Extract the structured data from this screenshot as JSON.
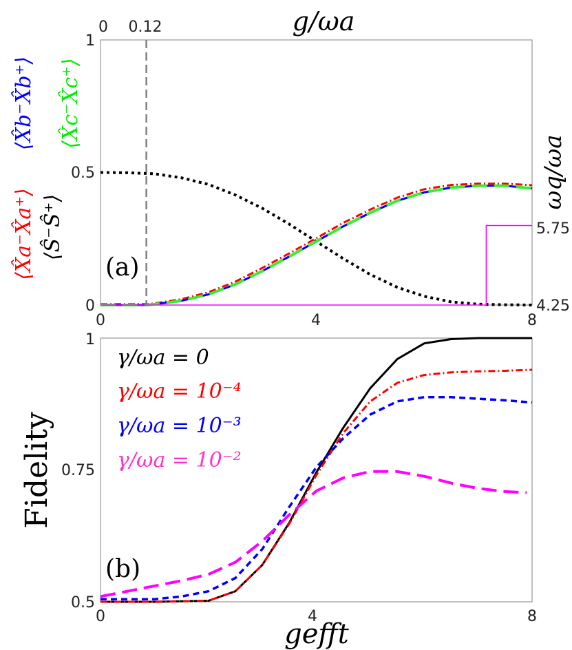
{
  "chart_data": [
    {
      "panel": "(a)",
      "type": "line",
      "xlim": [
        0,
        8
      ],
      "ylim": [
        0,
        1
      ],
      "x_ticks": [
        "0",
        "4",
        "8"
      ],
      "y_ticks": [
        "0",
        "0.5",
        "1"
      ],
      "top_axis_label": "g/ωa",
      "top_axis_ticks": [
        "0",
        "0.12"
      ],
      "marker_x": 0.85,
      "right_axis_label": "ωq/ωa",
      "right_axis_ticks": [
        "4.25",
        "5.75"
      ],
      "ylabel_parts": [
        "⟨X̂a⁻X̂a⁺⟩",
        "⟨Ŝ⁻Ŝ⁺⟩",
        "⟨X̂b⁻X̂b⁺⟩",
        "⟨X̂c⁻X̂c⁺⟩"
      ],
      "ylabel_colors": [
        "#ff0000",
        "#000000",
        "#0000ff",
        "#00ee00"
      ],
      "series": [
        {
          "label": "⟨Ŝ⁻Ŝ⁺⟩",
          "color": "#000000",
          "style": "dotted",
          "x": [
            0,
            0.5,
            1,
            1.5,
            2,
            2.5,
            3,
            3.5,
            4,
            4.5,
            5,
            5.5,
            6,
            6.5,
            7,
            7.5,
            8
          ],
          "y": [
            0.5,
            0.499,
            0.495,
            0.48,
            0.455,
            0.415,
            0.365,
            0.305,
            0.24,
            0.175,
            0.115,
            0.067,
            0.033,
            0.012,
            0.003,
            0.001,
            0.0
          ]
        },
        {
          "label": "⟨X̂a⁻X̂a⁺⟩",
          "color": "#ff0000",
          "style": "dashdot",
          "x": [
            0,
            0.85,
            1,
            1.5,
            2,
            2.5,
            3,
            3.5,
            4,
            4.5,
            5,
            5.5,
            6,
            6.5,
            7,
            7.5,
            8
          ],
          "y": [
            0.003,
            0.003,
            0.006,
            0.022,
            0.048,
            0.088,
            0.14,
            0.195,
            0.252,
            0.31,
            0.36,
            0.405,
            0.437,
            0.453,
            0.458,
            0.458,
            0.452
          ]
        },
        {
          "label": "⟨X̂b⁻X̂b⁺⟩",
          "color": "#0000ff",
          "style": "solid",
          "x": [
            0,
            0.85,
            1,
            1.5,
            2,
            2.5,
            3,
            3.5,
            4,
            4.5,
            5,
            5.5,
            6,
            6.5,
            7,
            7.5,
            8
          ],
          "y": [
            0.0,
            0.0,
            0.003,
            0.016,
            0.04,
            0.078,
            0.128,
            0.183,
            0.24,
            0.297,
            0.348,
            0.393,
            0.425,
            0.443,
            0.45,
            0.45,
            0.44
          ]
        },
        {
          "label": "⟨X̂c⁻X̂c⁺⟩",
          "color": "#33ee33",
          "style": "longdash",
          "x": [
            0,
            0.85,
            1,
            1.5,
            2,
            2.5,
            3,
            3.5,
            4,
            4.5,
            5,
            5.5,
            6,
            6.5,
            7,
            7.5,
            8
          ],
          "y": [
            0.0,
            0.0,
            0.003,
            0.016,
            0.04,
            0.078,
            0.128,
            0.183,
            0.24,
            0.297,
            0.348,
            0.393,
            0.425,
            0.443,
            0.45,
            0.45,
            0.44
          ]
        },
        {
          "label": "ωq/ωa",
          "color": "#ff00ff",
          "style": "thin",
          "x": [
            0,
            7.15,
            7.15,
            8
          ],
          "y": [
            0.0,
            0.0,
            0.3,
            0.3
          ]
        }
      ]
    },
    {
      "panel": "(b)",
      "type": "line",
      "xlim": [
        0,
        8
      ],
      "ylim": [
        0.5,
        1.0
      ],
      "x_ticks": [
        "0",
        "4",
        "8"
      ],
      "y_ticks": [
        "0.5",
        "0.75",
        "1"
      ],
      "xlabel": "gefft",
      "ylabel": "Fidelity",
      "series": [
        {
          "name": "γ/ωa = 0",
          "color": "#000000",
          "style": "solid",
          "x": [
            0,
            1,
            2,
            2.5,
            3,
            3.5,
            4,
            4.5,
            5,
            5.5,
            6,
            6.5,
            7,
            7.5,
            8
          ],
          "y": [
            0.5,
            0.5,
            0.502,
            0.52,
            0.57,
            0.65,
            0.745,
            0.83,
            0.905,
            0.96,
            0.99,
            0.998,
            1.0,
            1.0,
            1.0
          ]
        },
        {
          "name": "γ/ωa = 10⁻⁴",
          "color": "#ff0000",
          "style": "dashdot",
          "x": [
            0,
            1,
            2,
            2.5,
            3,
            3.5,
            4,
            4.5,
            5,
            5.5,
            6,
            6.5,
            7,
            7.5,
            8
          ],
          "y": [
            0.5,
            0.5,
            0.502,
            0.52,
            0.57,
            0.648,
            0.74,
            0.82,
            0.88,
            0.915,
            0.93,
            0.935,
            0.937,
            0.938,
            0.94
          ]
        },
        {
          "name": "γ/ωa = 10⁻³",
          "color": "#0000ff",
          "style": "dashed",
          "x": [
            0,
            1,
            1.5,
            2,
            2.5,
            3,
            3.5,
            4,
            4.5,
            5,
            5.5,
            6,
            6.5,
            7,
            7.5,
            8
          ],
          "y": [
            0.505,
            0.505,
            0.51,
            0.52,
            0.545,
            0.6,
            0.68,
            0.755,
            0.81,
            0.855,
            0.88,
            0.888,
            0.888,
            0.885,
            0.882,
            0.878
          ]
        },
        {
          "name": "γ/ωa = 10⁻²",
          "color": "#ff00ff",
          "style": "longdash",
          "x": [
            0,
            0.5,
            1,
            1.5,
            2,
            2.5,
            3,
            3.5,
            4,
            4.5,
            5,
            5.5,
            6,
            6.5,
            7,
            7.5,
            7.9
          ],
          "y": [
            0.51,
            0.52,
            0.53,
            0.54,
            0.552,
            0.575,
            0.615,
            0.665,
            0.71,
            0.735,
            0.747,
            0.747,
            0.738,
            0.725,
            0.715,
            0.709,
            0.707
          ]
        }
      ]
    }
  ]
}
